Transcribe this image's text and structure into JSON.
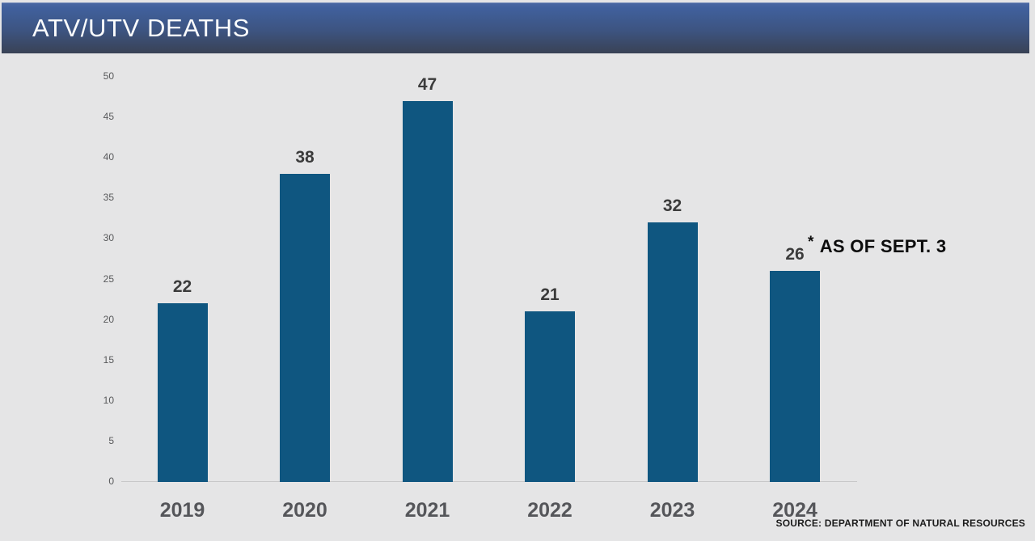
{
  "header": {
    "title": "ATV/UTV DEATHS"
  },
  "chart_data": {
    "type": "bar",
    "title": "ATV/UTV DEATHS",
    "categories": [
      "2019",
      "2020",
      "2021",
      "2022",
      "2023",
      "2024"
    ],
    "values": [
      22,
      38,
      47,
      21,
      32,
      26
    ],
    "xlabel": "",
    "ylabel": "",
    "ylim": [
      0,
      50
    ],
    "yticks": [
      0,
      5,
      10,
      15,
      20,
      25,
      30,
      35,
      40,
      45,
      50
    ],
    "grid": false,
    "legend": "none",
    "bar_color": "#0f5680",
    "value_label_color": "#3b3b3b",
    "tick_label_color": "#58595b",
    "category_label_color": "#55565a"
  },
  "annotation": {
    "marker": "*",
    "text": "AS OF SEPT. 3"
  },
  "source": {
    "text": "SOURCE: DEPARTMENT OF NATURAL RESOURCES"
  },
  "colors": {
    "banner_gradient_top": "#4a68a4",
    "banner_gradient_bottom": "#394255",
    "page_background": "#e5e5e6",
    "axis_line": "#c8c8c9"
  }
}
